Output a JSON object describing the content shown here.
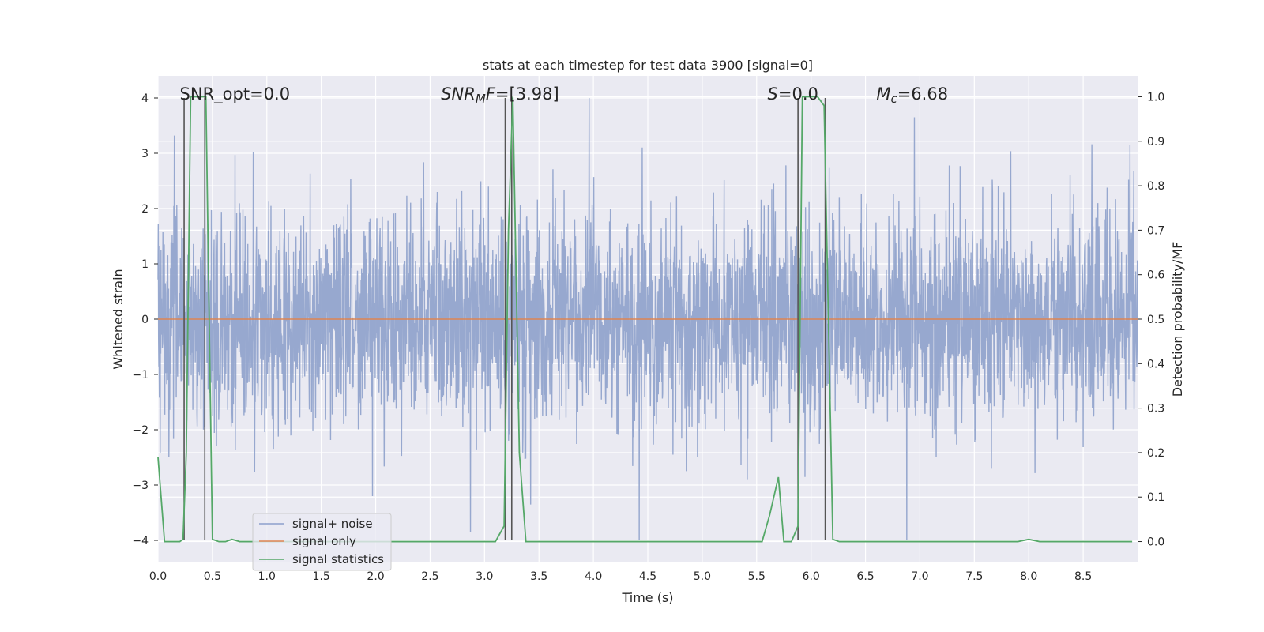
{
  "chart_data": {
    "type": "line",
    "title": "stats at each timestep for test data 3900 [signal=0]",
    "xlabel": "Time (s)",
    "ylabel_left": "Whitened strain",
    "ylabel_right": "Detection probability/MF",
    "xlim": [
      0,
      9.0
    ],
    "ylim_left": [
      -4.4,
      4.4
    ],
    "ylim_right": [
      -0.047,
      1.047
    ],
    "x_ticks": [
      0.0,
      0.5,
      1.0,
      1.5,
      2.0,
      2.5,
      3.0,
      3.5,
      4.0,
      4.5,
      5.0,
      5.5,
      6.0,
      6.5,
      7.0,
      7.5,
      8.0,
      8.5
    ],
    "x_tick_labels": [
      "0.0",
      "0.5",
      "1.0",
      "1.5",
      "2.0",
      "2.5",
      "3.0",
      "3.5",
      "4.0",
      "4.5",
      "5.0",
      "5.5",
      "6.0",
      "6.5",
      "7.0",
      "7.5",
      "8.0",
      "8.5"
    ],
    "y_left_ticks": [
      -4,
      -3,
      -2,
      -1,
      0,
      1,
      2,
      3,
      4
    ],
    "y_left_tick_labels": [
      "−4",
      "−3",
      "−2",
      "−1",
      "0",
      "1",
      "2",
      "3",
      "4"
    ],
    "y_right_ticks": [
      0.0,
      0.1,
      0.2,
      0.3,
      0.4,
      0.5,
      0.6,
      0.7,
      0.8,
      0.9,
      1.0
    ],
    "y_right_tick_labels": [
      "0.0",
      "0.1",
      "0.2",
      "0.3",
      "0.4",
      "0.5",
      "0.6",
      "0.7",
      "0.8",
      "0.9",
      "1.0"
    ],
    "annotations": [
      {
        "parts": [
          {
            "t": "SNR_opt=0.0",
            "it": false
          }
        ],
        "x": 0.2,
        "y": 4.0
      },
      {
        "parts": [
          {
            "t": "SNR",
            "it": true
          },
          {
            "t": "M",
            "it": true,
            "sub": true
          },
          {
            "t": "F",
            "it": true
          },
          {
            "t": "=[3.98]",
            "it": false
          }
        ],
        "x": 2.6,
        "y": 4.0
      },
      {
        "parts": [
          {
            "t": "S",
            "it": true
          },
          {
            "t": "=0.0",
            "it": false
          }
        ],
        "x": 5.6,
        "y": 4.0
      },
      {
        "parts": [
          {
            "t": "M",
            "it": true
          },
          {
            "t": "c",
            "it": true,
            "sub": true
          },
          {
            "t": "=6.68",
            "it": false
          }
        ],
        "x": 6.6,
        "y": 4.0
      }
    ],
    "legend": {
      "position": "lower-left",
      "entries": [
        {
          "label": "signal+ noise",
          "color": "#8c9fcc"
        },
        {
          "label": "signal only",
          "color": "#dd8452"
        },
        {
          "label": "signal statistics",
          "color": "#55a868"
        }
      ]
    },
    "series": [
      {
        "name": "signal+ noise",
        "axis": "left",
        "color": "#92a4cc",
        "noise_model": {
          "sigma": 0.95,
          "n_samples": 3600,
          "seed": 3900
        },
        "marked_peaks": [
          {
            "x": 0.43,
            "y": 3.55
          },
          {
            "x": 1.97,
            "y": -3.2
          },
          {
            "x": 2.87,
            "y": -3.85
          },
          {
            "x": 3.96,
            "y": 4.0
          },
          {
            "x": 4.42,
            "y": -4.0
          },
          {
            "x": 6.88,
            "y": -4.0
          },
          {
            "x": 6.95,
            "y": 3.65
          },
          {
            "x": 8.93,
            "y": 3.15
          }
        ]
      },
      {
        "name": "signal only",
        "axis": "left",
        "color": "#dd8452",
        "x": [
          0.0,
          9.0
        ],
        "y": [
          0.0,
          0.0
        ]
      },
      {
        "name": "signal statistics",
        "axis": "right",
        "color": "#55a868",
        "x": [
          0.0,
          0.06,
          0.12,
          0.2,
          0.23,
          0.26,
          0.3,
          0.34,
          0.42,
          0.44,
          0.5,
          0.56,
          0.62,
          0.68,
          0.75,
          0.9,
          3.1,
          3.18,
          3.22,
          3.26,
          3.32,
          3.38,
          5.55,
          5.62,
          5.7,
          5.75,
          5.82,
          5.88,
          5.92,
          6.0,
          6.06,
          6.12,
          6.2,
          6.26,
          7.9,
          8.0,
          8.1,
          8.95
        ],
        "y": [
          0.19,
          0.0,
          0.0,
          0.0,
          0.005,
          0.2,
          1.0,
          1.0,
          1.0,
          1.0,
          0.005,
          0.0,
          0.0,
          0.005,
          0.0,
          0.0,
          0.0,
          0.035,
          0.7,
          1.0,
          0.2,
          0.0,
          0.0,
          0.06,
          0.145,
          0.0,
          0.0,
          0.035,
          1.0,
          1.0,
          1.0,
          0.98,
          0.005,
          0.0,
          0.0,
          0.005,
          0.0,
          0.0
        ]
      }
    ],
    "vlines": [
      0.24,
      0.43,
      3.19,
      3.25,
      5.88,
      6.13
    ]
  }
}
